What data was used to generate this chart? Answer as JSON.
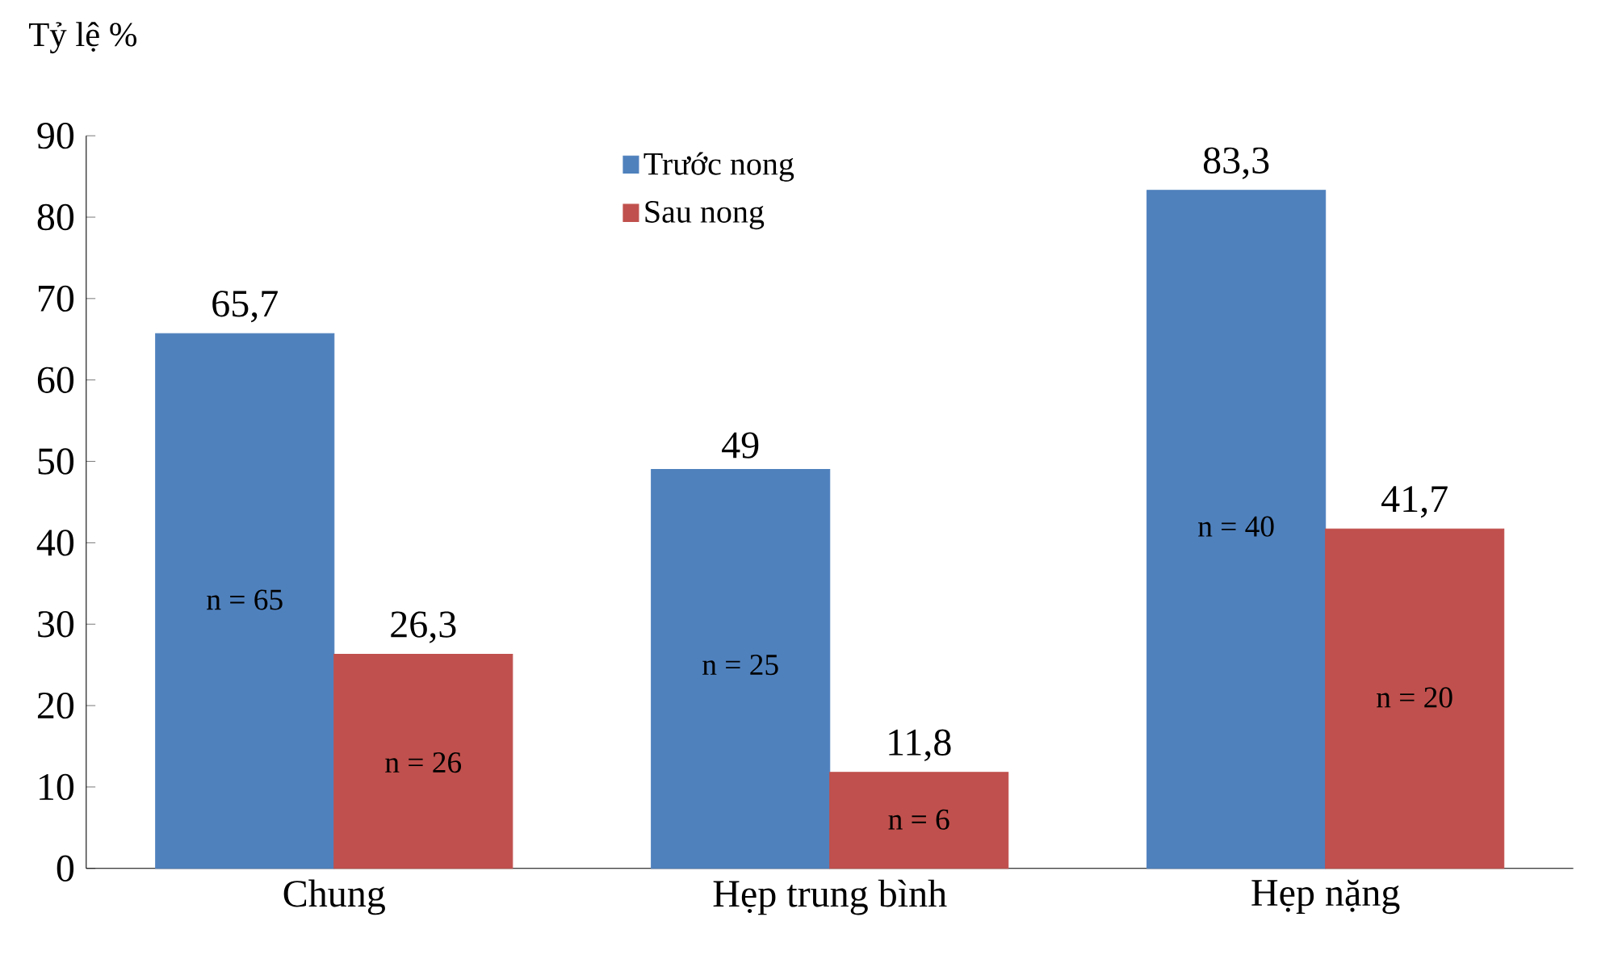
{
  "chart_data": {
    "type": "bar",
    "ylabel": "Tỷ lệ %",
    "categories": [
      "Chung",
      "Hẹp trung bình",
      "Hẹp nặng"
    ],
    "series": [
      {
        "name": "Trước nong",
        "color": "#4f81bd",
        "values": [
          65.7,
          49,
          83.3
        ],
        "value_labels": [
          "65,7",
          "49",
          "83,3"
        ]
      },
      {
        "name": "Sau nong",
        "color": "#c0504d",
        "values": [
          26.3,
          11.8,
          41.7
        ],
        "value_labels": [
          "26,3",
          "11,8",
          "41,7"
        ]
      }
    ],
    "annotations": [
      {
        "text": "n = 65",
        "x": "Chung",
        "y": 33
      },
      {
        "text": "n = 26",
        "x": "Chung",
        "y": 13
      },
      {
        "text": "n = 25",
        "x": "Hẹp trung bình",
        "y": 25
      },
      {
        "text": "n = 6",
        "x": "Hẹp trung bình",
        "y": 6
      },
      {
        "text": "n = 40",
        "x": "Hẹp nặng",
        "y": 42
      },
      {
        "text": "n = 20",
        "x": "Hẹp nặng",
        "y": 21
      }
    ],
    "ylim": [
      0,
      90
    ],
    "yticks": [
      0,
      10,
      20,
      30,
      40,
      50,
      60,
      70,
      80,
      90
    ],
    "grid": false,
    "legend": "top"
  }
}
